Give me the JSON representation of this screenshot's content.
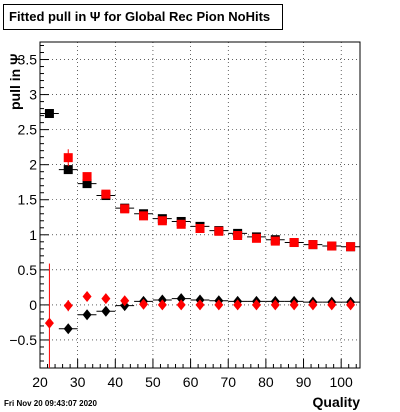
{
  "chart_data": {
    "type": "scatter",
    "title": "Fitted pull in Ψ  for Global Rec Pion NoHits",
    "xlabel": "Quality",
    "ylabel": "pull in Ψ",
    "xlim": [
      20,
      105
    ],
    "ylim": [
      -0.9,
      3.75
    ],
    "grid": true,
    "legend": "none",
    "x_ticks": [
      20,
      30,
      40,
      50,
      60,
      70,
      80,
      90,
      100
    ],
    "y_ticks": [
      -0.5,
      0,
      0.5,
      1,
      1.5,
      2,
      2.5,
      3,
      3.5
    ],
    "x_tick_labels": [
      "20",
      "30",
      "40",
      "50",
      "60",
      "70",
      "80",
      "90",
      "100"
    ],
    "y_tick_labels": [
      "−0.5",
      "0",
      "0.5",
      "1",
      "1.5",
      "2",
      "2.5",
      "3",
      "3.5"
    ],
    "series": [
      {
        "marker": "square",
        "color": "#000000",
        "error_color": "#000000",
        "points": [
          {
            "x": 22.5,
            "y": 2.73,
            "ex": 2.5,
            "ey": 0.05
          },
          {
            "x": 27.5,
            "y": 1.93,
            "ex": 2.5,
            "ey": 0.05
          },
          {
            "x": 32.5,
            "y": 1.73,
            "ex": 2.5,
            "ey": 0.03
          },
          {
            "x": 37.5,
            "y": 1.56,
            "ex": 2.5,
            "ey": 0.02
          },
          {
            "x": 42.5,
            "y": 1.38,
            "ex": 2.5,
            "ey": 0.02
          },
          {
            "x": 47.5,
            "y": 1.3,
            "ex": 2.5,
            "ey": 0.02
          },
          {
            "x": 52.5,
            "y": 1.23,
            "ex": 2.5,
            "ey": 0.02
          },
          {
            "x": 57.5,
            "y": 1.19,
            "ex": 2.5,
            "ey": 0.02
          },
          {
            "x": 62.5,
            "y": 1.12,
            "ex": 2.5,
            "ey": 0.02
          },
          {
            "x": 67.5,
            "y": 1.06,
            "ex": 2.5,
            "ey": 0.02
          },
          {
            "x": 72.5,
            "y": 1.02,
            "ex": 2.5,
            "ey": 0.02
          },
          {
            "x": 77.5,
            "y": 0.97,
            "ex": 2.5,
            "ey": 0.02
          },
          {
            "x": 82.5,
            "y": 0.93,
            "ex": 2.5,
            "ey": 0.02
          },
          {
            "x": 87.5,
            "y": 0.89,
            "ex": 2.5,
            "ey": 0.02
          },
          {
            "x": 92.5,
            "y": 0.86,
            "ex": 2.5,
            "ey": 0.02
          },
          {
            "x": 97.5,
            "y": 0.84,
            "ex": 2.5,
            "ey": 0.02
          },
          {
            "x": 102.5,
            "y": 0.83,
            "ex": 2.5,
            "ey": 0.02
          }
        ]
      },
      {
        "marker": "square",
        "color": "#ff0000",
        "error_color": "#ff0000",
        "points": [
          {
            "x": 27.5,
            "y": 2.1,
            "ex": 1.0,
            "ey": 0.12
          },
          {
            "x": 32.5,
            "y": 1.83,
            "ex": 1.0,
            "ey": 0.05
          },
          {
            "x": 37.5,
            "y": 1.58,
            "ex": 1.0,
            "ey": 0.03
          },
          {
            "x": 42.5,
            "y": 1.37,
            "ex": 1.0,
            "ey": 0.02
          },
          {
            "x": 47.5,
            "y": 1.27,
            "ex": 1.0,
            "ey": 0.02
          },
          {
            "x": 52.5,
            "y": 1.2,
            "ex": 1.0,
            "ey": 0.02
          },
          {
            "x": 57.5,
            "y": 1.15,
            "ex": 1.0,
            "ey": 0.02
          },
          {
            "x": 62.5,
            "y": 1.09,
            "ex": 1.0,
            "ey": 0.02
          },
          {
            "x": 67.5,
            "y": 1.05,
            "ex": 1.0,
            "ey": 0.02
          },
          {
            "x": 72.5,
            "y": 0.99,
            "ex": 1.0,
            "ey": 0.02
          },
          {
            "x": 77.5,
            "y": 0.95,
            "ex": 1.0,
            "ey": 0.02
          },
          {
            "x": 82.5,
            "y": 0.91,
            "ex": 1.0,
            "ey": 0.02
          },
          {
            "x": 87.5,
            "y": 0.89,
            "ex": 1.0,
            "ey": 0.02
          },
          {
            "x": 92.5,
            "y": 0.86,
            "ex": 1.0,
            "ey": 0.02
          },
          {
            "x": 97.5,
            "y": 0.84,
            "ex": 1.0,
            "ey": 0.02
          },
          {
            "x": 102.5,
            "y": 0.83,
            "ex": 1.0,
            "ey": 0.02
          }
        ]
      },
      {
        "marker": "diamond",
        "color": "#000000",
        "error_color": "#000000",
        "points": [
          {
            "x": 27.5,
            "y": -0.34,
            "ex": 2.5,
            "ey": 0.03
          },
          {
            "x": 32.5,
            "y": -0.14,
            "ex": 2.5,
            "ey": 0.03
          },
          {
            "x": 37.5,
            "y": -0.09,
            "ex": 2.5,
            "ey": 0.02
          },
          {
            "x": 42.5,
            "y": -0.01,
            "ex": 2.5,
            "ey": 0.02
          },
          {
            "x": 47.5,
            "y": 0.05,
            "ex": 2.5,
            "ey": 0.02
          },
          {
            "x": 52.5,
            "y": 0.07,
            "ex": 2.5,
            "ey": 0.02
          },
          {
            "x": 57.5,
            "y": 0.09,
            "ex": 2.5,
            "ey": 0.02
          },
          {
            "x": 62.5,
            "y": 0.07,
            "ex": 2.5,
            "ey": 0.02
          },
          {
            "x": 67.5,
            "y": 0.06,
            "ex": 2.5,
            "ey": 0.02
          },
          {
            "x": 72.5,
            "y": 0.05,
            "ex": 2.5,
            "ey": 0.02
          },
          {
            "x": 77.5,
            "y": 0.05,
            "ex": 2.5,
            "ey": 0.02
          },
          {
            "x": 82.5,
            "y": 0.05,
            "ex": 2.5,
            "ey": 0.02
          },
          {
            "x": 87.5,
            "y": 0.05,
            "ex": 2.5,
            "ey": 0.02
          },
          {
            "x": 92.5,
            "y": 0.04,
            "ex": 2.5,
            "ey": 0.02
          },
          {
            "x": 97.5,
            "y": 0.04,
            "ex": 2.5,
            "ey": 0.02
          },
          {
            "x": 102.5,
            "y": 0.04,
            "ex": 2.5,
            "ey": 0.02
          }
        ]
      },
      {
        "marker": "diamond",
        "color": "#ff0000",
        "error_color": "#ff0000",
        "points": [
          {
            "x": 22.5,
            "y": -0.26,
            "ex": 1.0,
            "ey": 0.85
          },
          {
            "x": 27.5,
            "y": -0.01,
            "ex": 1.0,
            "ey": 0.08
          },
          {
            "x": 32.5,
            "y": 0.12,
            "ex": 1.0,
            "ey": 0.03
          },
          {
            "x": 37.5,
            "y": 0.09,
            "ex": 1.0,
            "ey": 0.02
          },
          {
            "x": 42.5,
            "y": 0.06,
            "ex": 1.0,
            "ey": 0.02
          },
          {
            "x": 47.5,
            "y": 0.01,
            "ex": 1.0,
            "ey": 0.02
          },
          {
            "x": 52.5,
            "y": 0.0,
            "ex": 1.0,
            "ey": 0.02
          },
          {
            "x": 57.5,
            "y": 0.0,
            "ex": 1.0,
            "ey": 0.02
          },
          {
            "x": 62.5,
            "y": 0.0,
            "ex": 1.0,
            "ey": 0.02
          },
          {
            "x": 67.5,
            "y": 0.0,
            "ex": 1.0,
            "ey": 0.02
          },
          {
            "x": 72.5,
            "y": 0.0,
            "ex": 1.0,
            "ey": 0.02
          },
          {
            "x": 77.5,
            "y": 0.0,
            "ex": 1.0,
            "ey": 0.02
          },
          {
            "x": 82.5,
            "y": 0.0,
            "ex": 1.0,
            "ey": 0.02
          },
          {
            "x": 87.5,
            "y": 0.0,
            "ex": 1.0,
            "ey": 0.02
          },
          {
            "x": 92.5,
            "y": 0.0,
            "ex": 1.0,
            "ey": 0.02
          },
          {
            "x": 97.5,
            "y": 0.0,
            "ex": 1.0,
            "ey": 0.02
          },
          {
            "x": 102.5,
            "y": 0.0,
            "ex": 1.0,
            "ey": 0.02
          }
        ]
      }
    ]
  },
  "footer": {
    "timestamp": "Fri Nov 20 09:43:07 2020"
  }
}
